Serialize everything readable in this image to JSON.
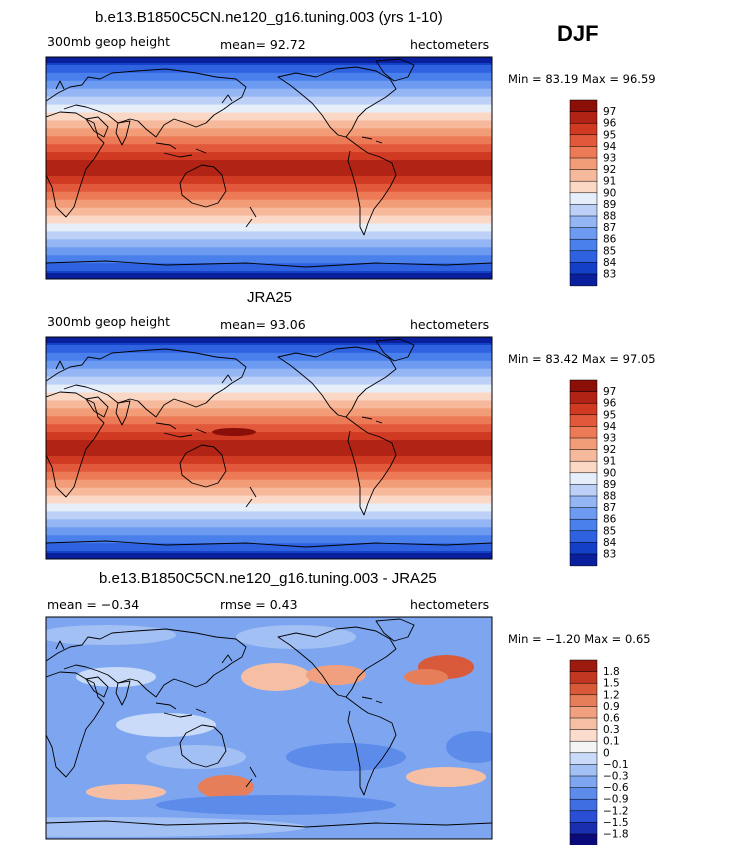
{
  "season": "DJF",
  "colors": {
    "main": [
      "#0a1f9e",
      "#1440c8",
      "#2f62e0",
      "#4a80ec",
      "#6e9bf2",
      "#95b6f5",
      "#bcd0f8",
      "#e6eefa",
      "#fbd8c6",
      "#f7b99c",
      "#f39c78",
      "#ec7a56",
      "#e2583a",
      "#d03a22",
      "#b12314",
      "#8a0f08"
    ],
    "diff": [
      "#0a0a7a",
      "#1a2eb0",
      "#2a4ed4",
      "#3f6de2",
      "#5d8bea",
      "#7ea6f0",
      "#a3c0f4",
      "#c9dbf8",
      "#f4f4f4",
      "#fbdccd",
      "#f6bfa4",
      "#f0a07e",
      "#e67e5a",
      "#d85a3a",
      "#c23722",
      "#9c1a0e"
    ]
  },
  "panels": [
    {
      "id": "model",
      "title": "b.e13.B1850C5CN.ne120_g16.tuning.003 (yrs 1-10)",
      "left_label": "300mb geop height",
      "stat_text": "mean=  92.72",
      "units": "hectometers",
      "minmax": "Min =  83.19 Max =  96.59",
      "colorbar": {
        "labels": [
          "97",
          "96",
          "95",
          "94",
          "93",
          "92",
          "91",
          "90",
          "89",
          "88",
          "87",
          "86",
          "85",
          "84",
          "83"
        ]
      },
      "chart_data": {
        "type": "heatmap",
        "field": "300mb geopotential height",
        "units": "hectometers",
        "mean": 92.72,
        "min": 83.19,
        "max": 96.59,
        "contour_levels": [
          83,
          84,
          85,
          86,
          87,
          88,
          89,
          90,
          91,
          92,
          93,
          94,
          95,
          96,
          97
        ]
      }
    },
    {
      "id": "obs",
      "title": "JRA25",
      "left_label": "300mb geop height",
      "stat_text": "mean=  93.06",
      "units": "hectometers",
      "minmax": "Min =  83.42 Max =  97.05",
      "colorbar": {
        "labels": [
          "97",
          "96",
          "95",
          "94",
          "93",
          "92",
          "91",
          "90",
          "89",
          "88",
          "87",
          "86",
          "85",
          "84",
          "83"
        ]
      },
      "chart_data": {
        "type": "heatmap",
        "field": "300mb geopotential height",
        "units": "hectometers",
        "mean": 93.06,
        "min": 83.42,
        "max": 97.05,
        "contour_levels": [
          83,
          84,
          85,
          86,
          87,
          88,
          89,
          90,
          91,
          92,
          93,
          94,
          95,
          96,
          97
        ]
      }
    },
    {
      "id": "diff",
      "title": "b.e13.B1850C5CN.ne120_g16.tuning.003 - JRA25",
      "left_label": "mean =  −0.34",
      "stat_text": "rmse =   0.43",
      "units": "hectometers",
      "minmax": "Min =  −1.20 Max =   0.65",
      "colorbar": {
        "labels": [
          "1.8",
          "1.5",
          "1.2",
          "0.9",
          "0.6",
          "0.3",
          "0.1",
          "0",
          "−0.1",
          "−0.3",
          "−0.6",
          "−0.9",
          "−1.2",
          "−1.5",
          "−1.8"
        ]
      },
      "chart_data": {
        "type": "heatmap",
        "field": "difference (model - JRA25)",
        "units": "hectometers",
        "mean": -0.34,
        "rmse": 0.43,
        "min": -1.2,
        "max": 0.65,
        "contour_levels": [
          -1.8,
          -1.5,
          -1.2,
          -0.9,
          -0.6,
          -0.3,
          -0.1,
          0,
          0.1,
          0.3,
          0.6,
          0.9,
          1.2,
          1.5,
          1.8
        ]
      }
    }
  ]
}
